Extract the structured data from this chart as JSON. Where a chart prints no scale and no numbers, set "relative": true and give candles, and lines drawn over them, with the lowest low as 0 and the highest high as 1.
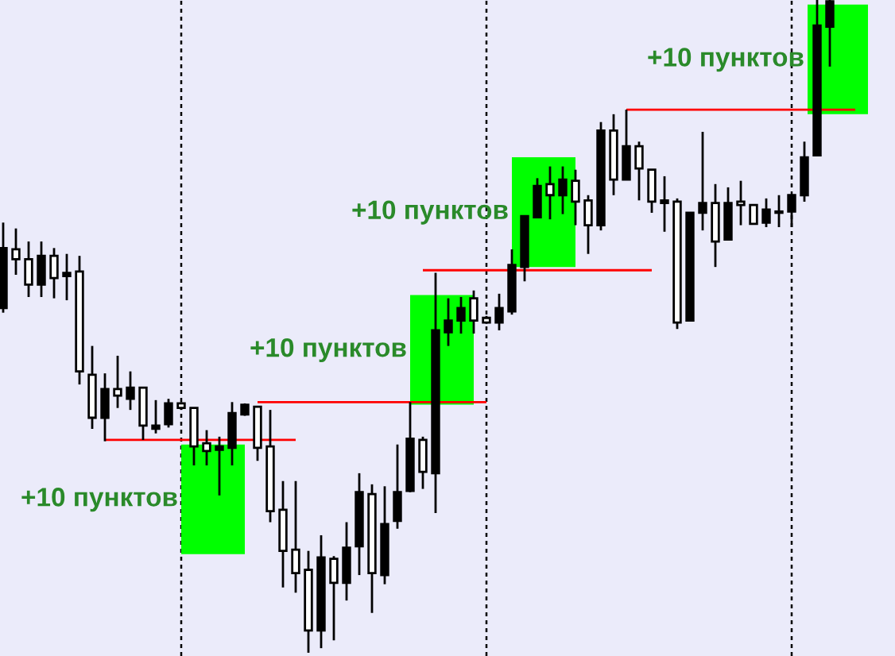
{
  "chart_data": {
    "type": "candlestick",
    "relative": true,
    "grid": "x",
    "categories": [
      null,
      null,
      null,
      null,
      null,
      null,
      null,
      null,
      null,
      null,
      null,
      null,
      null,
      null,
      null,
      null,
      null,
      null,
      null,
      null,
      null,
      null,
      null,
      null,
      null,
      null,
      null,
      null,
      null,
      null,
      null,
      null,
      null,
      null,
      null,
      null,
      null,
      null,
      null,
      null,
      null,
      null,
      null,
      null,
      null,
      null,
      null,
      null,
      null,
      null,
      null,
      null,
      null,
      null,
      null,
      null,
      null,
      null,
      null,
      null,
      null,
      null,
      null,
      null,
      null,
      null,
      null,
      null
    ],
    "ohlc": [
      [
        0.528,
        0.659,
        0.521,
        0.62
      ],
      [
        0.618,
        0.65,
        0.579,
        0.603
      ],
      [
        0.603,
        0.63,
        0.545,
        0.564
      ],
      [
        0.564,
        0.63,
        0.545,
        0.608
      ],
      [
        0.608,
        0.62,
        0.543,
        0.574
      ],
      [
        0.577,
        0.611,
        0.54,
        0.582
      ],
      [
        0.584,
        0.608,
        0.411,
        0.431
      ],
      [
        0.426,
        0.47,
        0.343,
        0.36
      ],
      [
        0.36,
        0.428,
        0.324,
        0.404
      ],
      [
        0.404,
        0.455,
        0.375,
        0.394
      ],
      [
        0.389,
        0.431,
        0.372,
        0.406
      ],
      [
        0.406,
        0.406,
        0.326,
        0.348
      ],
      [
        0.343,
        0.387,
        0.336,
        0.348
      ],
      [
        0.35,
        0.389,
        0.345,
        0.382
      ],
      [
        0.382,
        0.384,
        0.372,
        0.375
      ],
      [
        0.375,
        0.375,
        0.287,
        0.316
      ],
      [
        0.321,
        0.341,
        0.287,
        0.309
      ],
      [
        0.311,
        0.331,
        0.241,
        0.316
      ],
      [
        0.314,
        0.384,
        0.287,
        0.367
      ],
      [
        0.365,
        0.382,
        0.363,
        0.38
      ],
      [
        0.377,
        0.377,
        0.294,
        0.314
      ],
      [
        0.316,
        0.372,
        0.2,
        0.217
      ],
      [
        0.219,
        0.263,
        0.1,
        0.156
      ],
      [
        0.158,
        0.263,
        0.092,
        0.122
      ],
      [
        0.127,
        0.156,
        0,
        0.034
      ],
      [
        0.034,
        0.18,
        0.007,
        0.146
      ],
      [
        0.144,
        0.148,
        0.019,
        0.107
      ],
      [
        0.107,
        0.2,
        0.08,
        0.161
      ],
      [
        0.163,
        0.275,
        0.119,
        0.246
      ],
      [
        0.243,
        0.258,
        0.061,
        0.122
      ],
      [
        0.119,
        0.255,
        0.105,
        0.197
      ],
      [
        0.202,
        0.319,
        0.19,
        0.246
      ],
      [
        0.248,
        0.384,
        0.246,
        0.328
      ],
      [
        0.326,
        0.331,
        0.251,
        0.277
      ],
      [
        0.275,
        0.582,
        0.214,
        0.494
      ],
      [
        0.491,
        0.543,
        0.47,
        0.509
      ],
      [
        0.509,
        0.545,
        0.489,
        0.528
      ],
      [
        0.543,
        0.555,
        0.489,
        0.509
      ],
      [
        0.513,
        0.516,
        0.504,
        0.506
      ],
      [
        0.506,
        0.55,
        0.494,
        0.528
      ],
      [
        0.523,
        0.618,
        0.518,
        0.594
      ],
      [
        0.591,
        0.669,
        0.569,
        0.669
      ],
      [
        0.667,
        0.727,
        0.667,
        0.715
      ],
      [
        0.718,
        0.745,
        0.664,
        0.701
      ],
      [
        0.701,
        0.745,
        0.672,
        0.725
      ],
      [
        0.723,
        0.74,
        0.655,
        0.691
      ],
      [
        0.693,
        0.701,
        0.611,
        0.655
      ],
      [
        0.655,
        0.813,
        0.647,
        0.8
      ],
      [
        0.8,
        0.825,
        0.701,
        0.725
      ],
      [
        0.725,
        0.832,
        0.725,
        0.776
      ],
      [
        0.776,
        0.783,
        0.693,
        0.742
      ],
      [
        0.74,
        0.74,
        0.674,
        0.691
      ],
      [
        0.689,
        0.73,
        0.645,
        0.693
      ],
      [
        0.691,
        0.696,
        0.496,
        0.506
      ],
      [
        0.509,
        0.674,
        0.509,
        0.674
      ],
      [
        0.674,
        0.798,
        0.647,
        0.689
      ],
      [
        0.689,
        0.718,
        0.591,
        0.63
      ],
      [
        0.633,
        0.713,
        0.633,
        0.689
      ],
      [
        0.691,
        0.723,
        0.655,
        0.686
      ],
      [
        0.686,
        0.686,
        0.657,
        0.657
      ],
      [
        0.659,
        0.696,
        0.652,
        0.679
      ],
      [
        0.674,
        0.701,
        0.652,
        0.676
      ],
      [
        0.676,
        0.701,
        0.652,
        0.701
      ],
      [
        0.701,
        0.783,
        0.691,
        0.759
      ],
      [
        0.762,
        1,
        0.762,
        0.961
      ],
      [
        0.959,
        1,
        0.898,
        0.998
      ],
      null,
      null
    ],
    "series": [
      {
        "type": "line",
        "color": "#ff0000",
        "values": [
          null,
          null,
          null,
          null,
          null,
          null,
          null,
          null,
          0.326,
          0.326,
          0.326,
          0.326,
          0.326,
          0.326,
          0.326,
          0.326,
          0.326,
          0.326,
          0.326,
          0.326,
          0.326,
          0.326,
          0.326,
          0.326,
          null,
          null,
          null,
          null,
          null,
          null,
          null,
          null,
          null,
          null,
          null,
          null,
          null,
          null,
          null,
          null,
          null,
          null,
          null,
          null,
          null,
          null,
          null,
          null,
          null,
          null,
          null,
          null,
          null,
          null,
          null,
          null,
          null,
          null,
          null,
          null,
          null,
          null,
          null,
          null,
          null,
          null,
          null,
          null
        ]
      },
      {
        "type": "line",
        "color": "#ff0000",
        "values": [
          null,
          null,
          null,
          null,
          null,
          null,
          null,
          null,
          null,
          null,
          null,
          null,
          null,
          null,
          null,
          null,
          null,
          null,
          null,
          null,
          0.384,
          0.384,
          0.384,
          0.384,
          0.384,
          0.384,
          0.384,
          0.384,
          0.384,
          0.384,
          0.384,
          0.384,
          0.384,
          0.384,
          0.384,
          0.384,
          0.384,
          0.384,
          0.384,
          null,
          null,
          null,
          null,
          null,
          null,
          null,
          null,
          null,
          null,
          null,
          null,
          null,
          null,
          null,
          null,
          null,
          null,
          null,
          null,
          null,
          null,
          null,
          null,
          null,
          null,
          null,
          null,
          null
        ]
      },
      {
        "type": "line",
        "color": "#ff0000",
        "values": [
          null,
          null,
          null,
          null,
          null,
          null,
          null,
          null,
          null,
          null,
          null,
          null,
          null,
          null,
          null,
          null,
          null,
          null,
          null,
          null,
          null,
          null,
          null,
          null,
          null,
          null,
          null,
          null,
          null,
          null,
          null,
          null,
          null,
          0.586,
          0.586,
          0.586,
          0.586,
          0.586,
          0.586,
          0.586,
          0.586,
          0.586,
          0.586,
          0.586,
          0.586,
          0.586,
          0.586,
          0.586,
          0.586,
          0.586,
          0.586,
          0.586,
          null,
          null,
          null,
          null,
          null,
          null,
          null,
          null,
          null,
          null,
          null,
          null,
          null,
          null,
          null,
          null
        ]
      },
      {
        "type": "line",
        "color": "#ff0000",
        "values": [
          null,
          null,
          null,
          null,
          null,
          null,
          null,
          null,
          null,
          null,
          null,
          null,
          null,
          null,
          null,
          null,
          null,
          null,
          null,
          null,
          null,
          null,
          null,
          null,
          null,
          null,
          null,
          null,
          null,
          null,
          null,
          null,
          null,
          null,
          null,
          null,
          null,
          null,
          null,
          null,
          null,
          null,
          null,
          null,
          null,
          null,
          null,
          null,
          null,
          0.832,
          0.832,
          0.832,
          0.832,
          0.832,
          0.832,
          0.832,
          0.832,
          0.832,
          0.832,
          0.832,
          0.832,
          0.832,
          0.832,
          0.832,
          0.832,
          0.832,
          0.832,
          0.832
        ]
      }
    ],
    "bands": [
      {
        "axis": "y",
        "from": 0.151,
        "to": 0.319,
        "label": "+10 пунктов",
        "color": "#00ff00"
      },
      {
        "axis": "y",
        "from": 0.38,
        "to": 0.548,
        "label": "+10 пунктов",
        "color": "#00ff00"
      },
      {
        "axis": "y",
        "from": 0.591,
        "to": 0.759,
        "label": "+10 пунктов",
        "color": "#00ff00"
      },
      {
        "axis": "y",
        "from": 0.825,
        "to": 0.993,
        "label": "+10 пунктов",
        "color": "#00ff00"
      }
    ]
  }
}
